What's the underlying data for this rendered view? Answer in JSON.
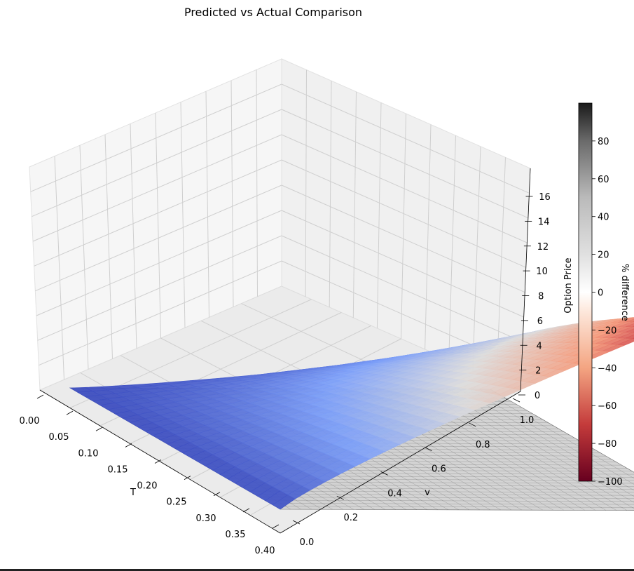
{
  "chart_data": {
    "type": "surface3d",
    "title": "Predicted vs Actual Comparison",
    "x_axis": {
      "label": "T",
      "range": [
        0.0,
        0.4
      ],
      "ticks": [
        "0.00",
        "0.05",
        "0.10",
        "0.15",
        "0.20",
        "0.25",
        "0.30",
        "0.35",
        "0.40"
      ]
    },
    "y_axis": {
      "label": "v",
      "range": [
        0.0,
        1.0
      ],
      "ticks": [
        "0.0",
        "0.2",
        "0.4",
        "0.6",
        "0.8",
        "1.0"
      ]
    },
    "z_axis": {
      "label": "Option Price",
      "range": [
        0,
        18
      ],
      "ticks": [
        "0",
        "2",
        "4",
        "6",
        "8",
        "10",
        "12",
        "14",
        "16"
      ]
    },
    "colorbar": {
      "label": "% difference",
      "range": [
        -100,
        100
      ],
      "ticks": [
        "−100",
        "−80",
        "−60",
        "−40",
        "−20",
        "0",
        "20",
        "40",
        "60",
        "80"
      ],
      "colormap": "RdGy"
    },
    "series": [
      {
        "kind": "predicted surface",
        "colormap": "coolwarm",
        "corner_values": {
          "T0_v0": 0,
          "T0_v1": 0,
          "T04_v0": 0,
          "T04_v1": 17
        }
      },
      {
        "kind": "difference plane",
        "colormap": "RdGy",
        "value": 0
      }
    ],
    "grid": true,
    "colors": {
      "pane_back": "#f2f2f2",
      "pane_left": "#f6f6f6",
      "pane_floor": "#ececec",
      "grid": "#cfcfcf"
    }
  }
}
